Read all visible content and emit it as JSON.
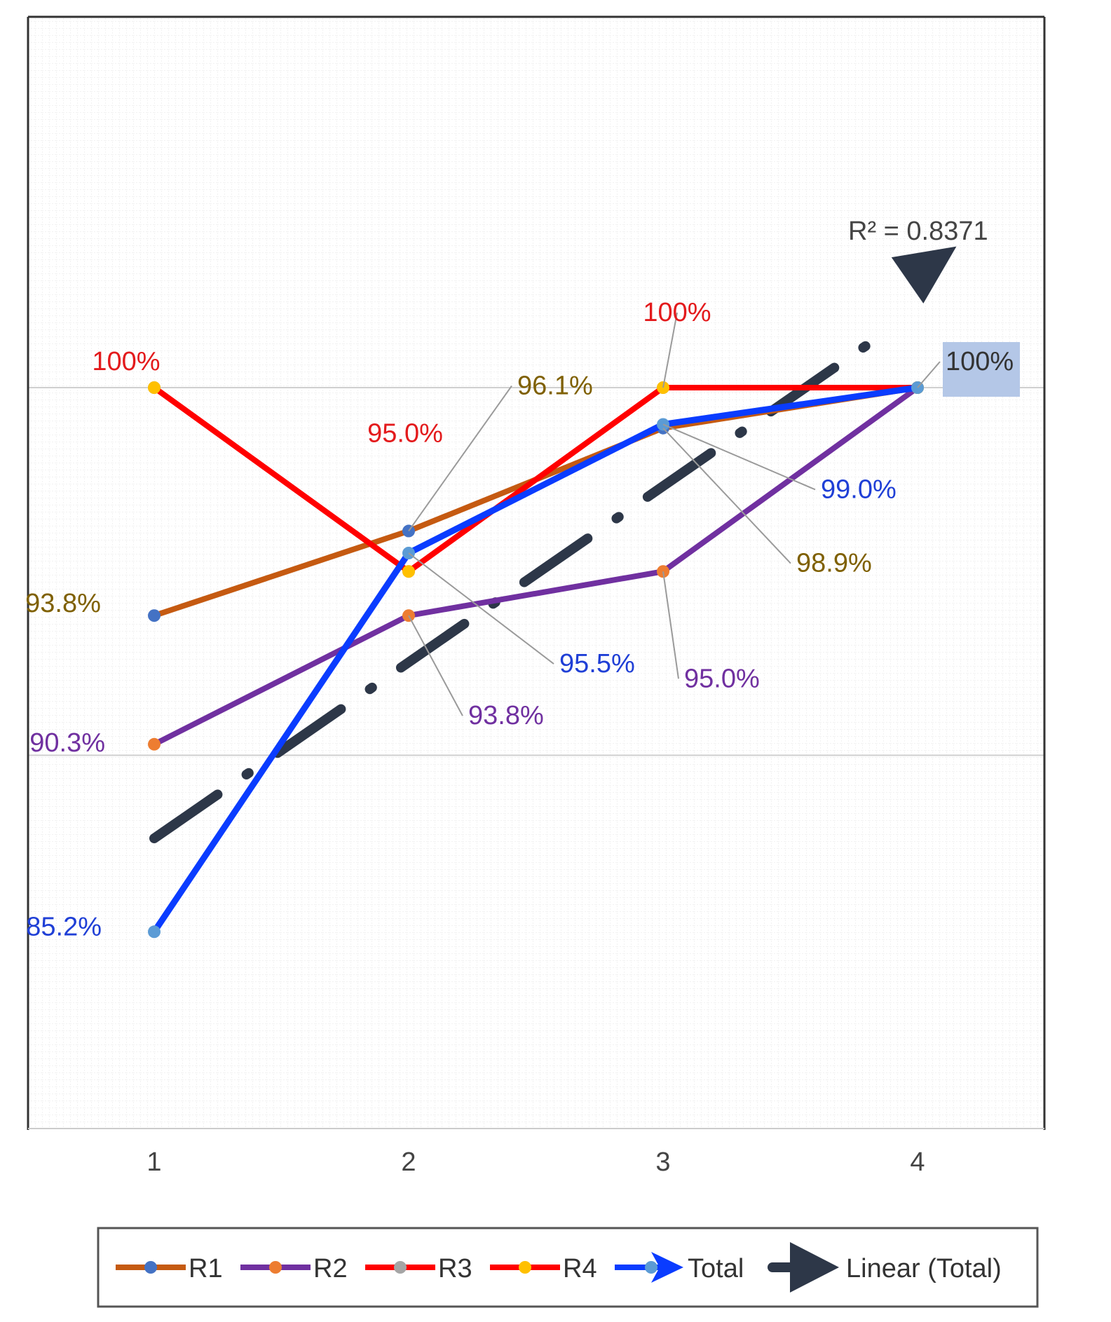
{
  "chart_data": {
    "type": "line",
    "x": [
      1,
      2,
      3,
      4
    ],
    "categories": [
      "1",
      "2",
      "3",
      "4"
    ],
    "ylim": [
      80,
      105
    ],
    "grid": "fine minor grid",
    "legend": "bottom",
    "title": "",
    "xlabel": "",
    "ylabel": "",
    "series": [
      {
        "name": "R1",
        "values": [
          93.8,
          96.1,
          98.9,
          100
        ],
        "color": "#c55a11",
        "marker_color": "#4472c4",
        "labels": [
          "93.8%",
          "96.1%",
          "98.9%",
          ""
        ],
        "label_color": "#7f6000"
      },
      {
        "name": "R2",
        "values": [
          90.3,
          93.8,
          95.0,
          100
        ],
        "color": "#7030a0",
        "marker_color": "#ed7d31",
        "labels": [
          "90.3%",
          "93.8%",
          "95.0%",
          ""
        ],
        "label_color": "#7030a0"
      },
      {
        "name": "R3",
        "values": [
          100,
          95.0,
          100,
          100
        ],
        "color": "#ff0000",
        "marker_color": "#a5a5a5",
        "labels": [
          "100%",
          "95.0%",
          "100%",
          ""
        ],
        "label_color": "#e31a1c"
      },
      {
        "name": "R4",
        "values": [
          100,
          95.0,
          100,
          100
        ],
        "color": "#ff0000",
        "marker_color": "#ffc000",
        "labels": [
          "",
          "",
          "",
          ""
        ],
        "label_color": "#e31a1c"
      },
      {
        "name": "Total",
        "values": [
          85.2,
          95.5,
          99.0,
          100
        ],
        "color": "#0a3cff",
        "marker_color": "#5b9bd5",
        "labels": [
          "85.2%",
          "95.5%",
          "99.0%",
          "100%"
        ],
        "label_color": "#1f3fd6"
      }
    ],
    "trendline": {
      "name": "Linear (Total)",
      "of": "Total",
      "color": "#2d3748",
      "r_squared_text": "R² = 0.8371"
    }
  },
  "colors": {
    "grid": "#e3e3e3",
    "major_grid": "#cfcfcf",
    "leader": "#9a9a9a",
    "highlight": "#b4c7e7"
  }
}
